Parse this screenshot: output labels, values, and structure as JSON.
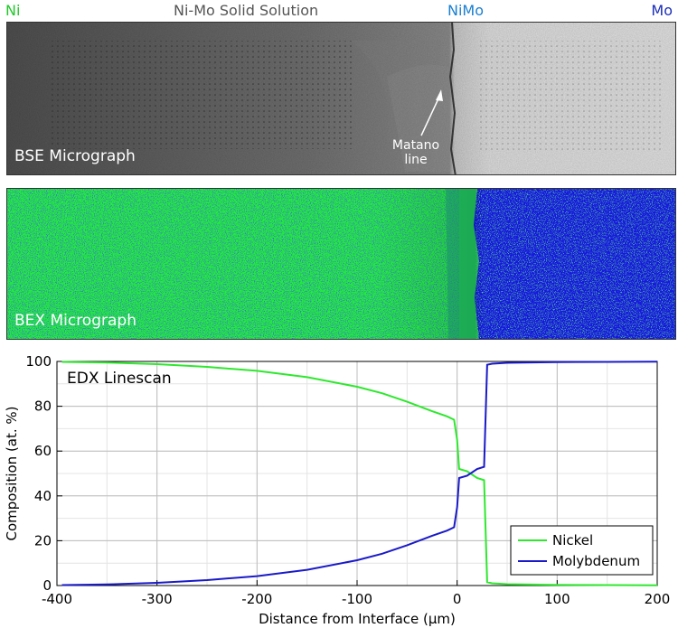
{
  "labels": {
    "ni": "Ni",
    "solid_solution": "Ni-Mo Solid Solution",
    "nimo": "NiMo",
    "mo": "Mo",
    "bse": "BSE Micrograph",
    "bex": "BEX Micrograph",
    "matano_line1": "Matano",
    "matano_line2": "line"
  },
  "colors": {
    "ni": "#22c82a",
    "solid_solution": "#555555",
    "nimo": "#1a7fd1",
    "mo": "#1b2fb8",
    "nickel_line": "#2ee82e",
    "molybdenum_line": "#1a1ac8"
  },
  "chart_data": {
    "type": "line",
    "title": "EDX Linescan",
    "xlabel": "Distance from Interface (µm)",
    "ylabel": "Composition (at. %)",
    "xlim": [
      -400,
      200
    ],
    "ylim": [
      0,
      100
    ],
    "xticks": [
      -400,
      -300,
      -200,
      -100,
      0,
      100,
      200
    ],
    "yticks": [
      0,
      20,
      40,
      60,
      80,
      100
    ],
    "grid": true,
    "legend": "bottom-right",
    "series": [
      {
        "name": "Nickel",
        "x": [
          -395,
          -350,
          -300,
          -250,
          -200,
          -150,
          -100,
          -75,
          -50,
          -25,
          -10,
          -3,
          0,
          2,
          10,
          20,
          27,
          30,
          35,
          50,
          100,
          150,
          200
        ],
        "y": [
          99.8,
          99.5,
          98.8,
          97.6,
          95.8,
          93.0,
          88.7,
          85.8,
          82.0,
          77.8,
          75.5,
          74.0,
          65.0,
          52.0,
          51.0,
          48.0,
          47.0,
          1.5,
          1.0,
          0.6,
          0.3,
          0.2,
          0.1
        ]
      },
      {
        "name": "Molybdenum",
        "x": [
          -395,
          -350,
          -300,
          -250,
          -200,
          -150,
          -100,
          -75,
          -50,
          -25,
          -10,
          -3,
          0,
          2,
          10,
          20,
          27,
          30,
          35,
          50,
          100,
          150,
          200
        ],
        "y": [
          0.2,
          0.5,
          1.2,
          2.4,
          4.2,
          7.0,
          11.3,
          14.2,
          18.0,
          22.2,
          24.5,
          26.0,
          35.0,
          48.0,
          49.0,
          52.0,
          53.0,
          98.5,
          99.0,
          99.4,
          99.7,
          99.8,
          99.9
        ]
      }
    ]
  }
}
